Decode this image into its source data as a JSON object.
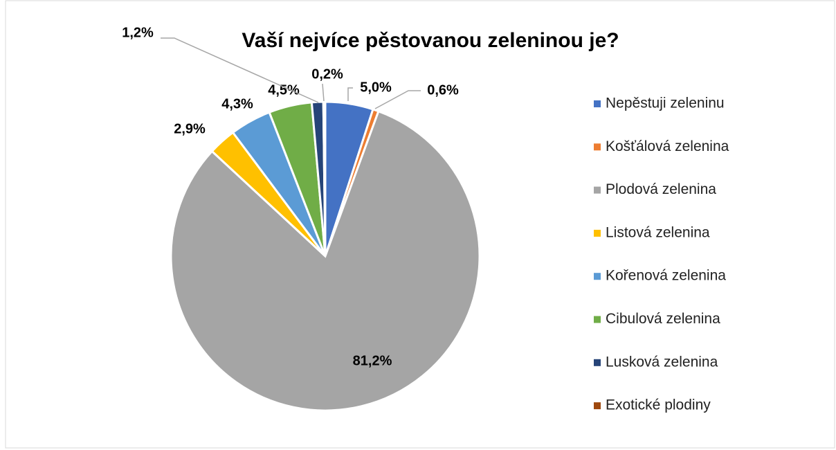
{
  "chart_data": {
    "type": "pie",
    "title": "Vaší nejvíce pěstovanou zeleninou je?",
    "categories": [
      "Nepěstuji zeleninu",
      "Košťálová zelenina",
      "Plodová zelenina",
      "Listová zelenina",
      "Kořenová zelenina",
      "Cibulová zelenina",
      "Lusková zelenina",
      "Exotické plodiny"
    ],
    "values": [
      5.0,
      0.6,
      81.2,
      2.9,
      4.3,
      4.5,
      1.2,
      0.2
    ],
    "value_labels": [
      "5,0%",
      "0,6%",
      "81,2%",
      "2,9%",
      "4,3%",
      "4,5%",
      "1,2%",
      "0,2%"
    ],
    "colors": [
      "#4472c4",
      "#ed7d31",
      "#a5a5a5",
      "#ffc000",
      "#5b9bd5",
      "#70ad47",
      "#264478",
      "#9e480e"
    ],
    "legend": "right"
  }
}
